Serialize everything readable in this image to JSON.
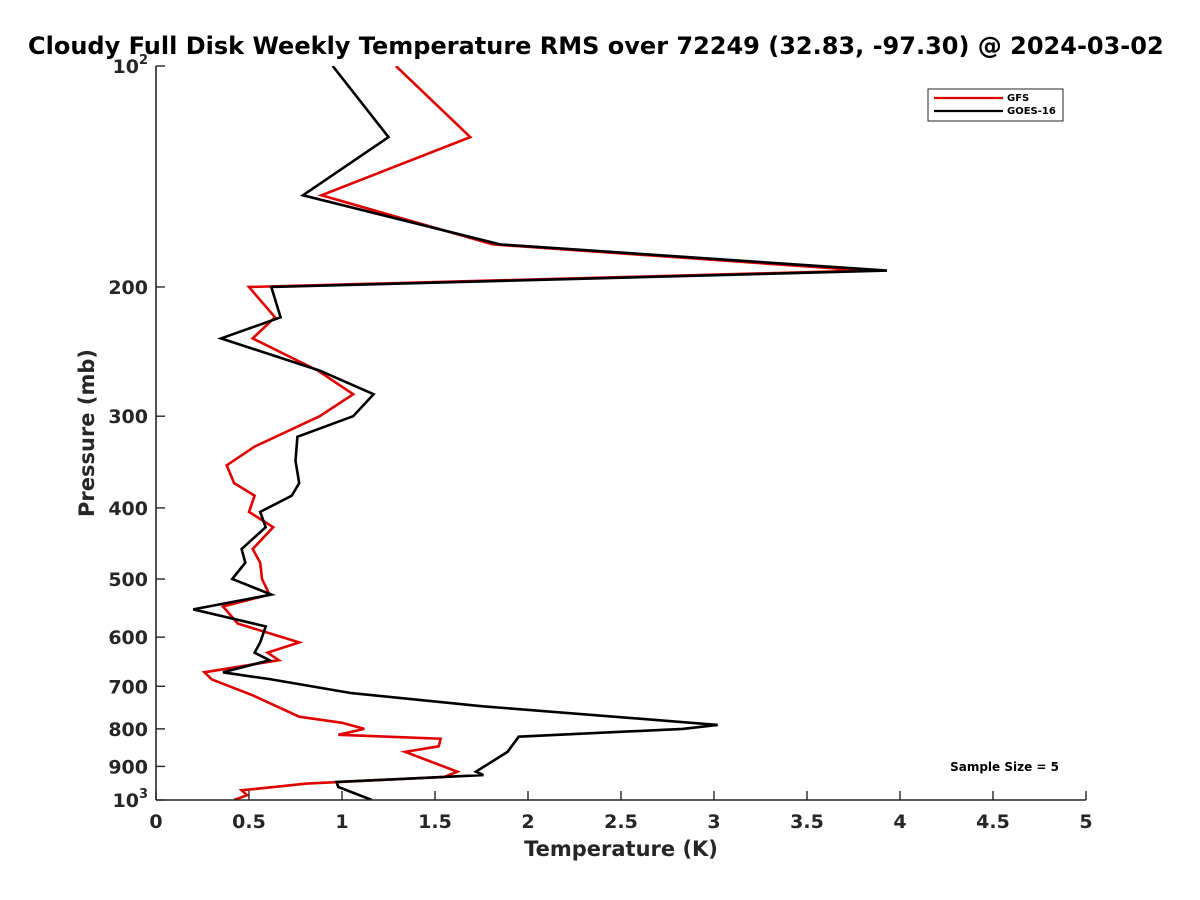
{
  "chart_data": {
    "type": "line",
    "title": "Cloudy Full Disk Weekly Temperature RMS over 72249 (32.83, -97.30) @ 2024-03-02",
    "xlabel": "Temperature (K)",
    "ylabel": "Pressure (mb)",
    "xlim": [
      0,
      5
    ],
    "ylim": [
      1000,
      100
    ],
    "yscale": "log",
    "grid": false,
    "legend_position": "top-right",
    "x_ticks": [
      "0",
      "0.5",
      "1",
      "1.5",
      "2",
      "2.5",
      "3",
      "3.5",
      "4",
      "4.5",
      "5"
    ],
    "y_ticks": [
      {
        "value": 100,
        "base": "10",
        "exp": "2"
      },
      {
        "value": 200,
        "label": "200"
      },
      {
        "value": 300,
        "label": "300"
      },
      {
        "value": 400,
        "label": "400"
      },
      {
        "value": 500,
        "label": "500"
      },
      {
        "value": 600,
        "label": "600"
      },
      {
        "value": 700,
        "label": "700"
      },
      {
        "value": 800,
        "label": "800"
      },
      {
        "value": 900,
        "label": "900"
      },
      {
        "value": 1000,
        "base": "10",
        "exp": "3"
      }
    ],
    "annotation": "Sample Size = 5",
    "series": [
      {
        "name": "GFS",
        "color": "#e00000",
        "points": [
          [
            1.29,
            100
          ],
          [
            1.69,
            125
          ],
          [
            0.89,
            150
          ],
          [
            1.81,
            175
          ],
          [
            3.82,
            190
          ],
          [
            0.5,
            200
          ],
          [
            0.64,
            220
          ],
          [
            0.52,
            235
          ],
          [
            0.87,
            260
          ],
          [
            1.06,
            280
          ],
          [
            0.88,
            300
          ],
          [
            0.53,
            330
          ],
          [
            0.38,
            350
          ],
          [
            0.42,
            370
          ],
          [
            0.53,
            385
          ],
          [
            0.5,
            405
          ],
          [
            0.63,
            425
          ],
          [
            0.52,
            455
          ],
          [
            0.56,
            475
          ],
          [
            0.57,
            500
          ],
          [
            0.61,
            525
          ],
          [
            0.36,
            545
          ],
          [
            0.44,
            575
          ],
          [
            0.77,
            610
          ],
          [
            0.6,
            630
          ],
          [
            0.66,
            645
          ],
          [
            0.26,
            670
          ],
          [
            0.3,
            685
          ],
          [
            0.52,
            720
          ],
          [
            0.77,
            770
          ],
          [
            1.0,
            785
          ],
          [
            1.12,
            800
          ],
          [
            0.98,
            815
          ],
          [
            1.53,
            825
          ],
          [
            1.52,
            845
          ],
          [
            1.34,
            860
          ],
          [
            1.62,
            915
          ],
          [
            1.55,
            930
          ],
          [
            0.81,
            950
          ],
          [
            0.46,
            970
          ],
          [
            0.49,
            985
          ],
          [
            0.42,
            1000
          ]
        ]
      },
      {
        "name": "GOES-16",
        "color": "#000000",
        "points": [
          [
            0.95,
            100
          ],
          [
            1.25,
            125
          ],
          [
            0.79,
            150
          ],
          [
            1.85,
            175
          ],
          [
            3.93,
            190
          ],
          [
            0.62,
            200
          ],
          [
            0.67,
            220
          ],
          [
            0.35,
            235
          ],
          [
            0.88,
            260
          ],
          [
            1.17,
            280
          ],
          [
            1.06,
            300
          ],
          [
            0.76,
            320
          ],
          [
            0.75,
            345
          ],
          [
            0.77,
            370
          ],
          [
            0.73,
            385
          ],
          [
            0.56,
            405
          ],
          [
            0.59,
            425
          ],
          [
            0.46,
            455
          ],
          [
            0.48,
            475
          ],
          [
            0.41,
            500
          ],
          [
            0.62,
            525
          ],
          [
            0.2,
            550
          ],
          [
            0.59,
            580
          ],
          [
            0.56,
            610
          ],
          [
            0.53,
            630
          ],
          [
            0.61,
            645
          ],
          [
            0.36,
            670
          ],
          [
            0.62,
            685
          ],
          [
            1.05,
            715
          ],
          [
            1.75,
            745
          ],
          [
            3.02,
            790
          ],
          [
            2.83,
            800
          ],
          [
            1.95,
            820
          ],
          [
            1.89,
            860
          ],
          [
            1.72,
            915
          ],
          [
            1.76,
            925
          ],
          [
            0.97,
            945
          ],
          [
            0.98,
            960
          ],
          [
            1.16,
            1000
          ]
        ]
      }
    ]
  }
}
